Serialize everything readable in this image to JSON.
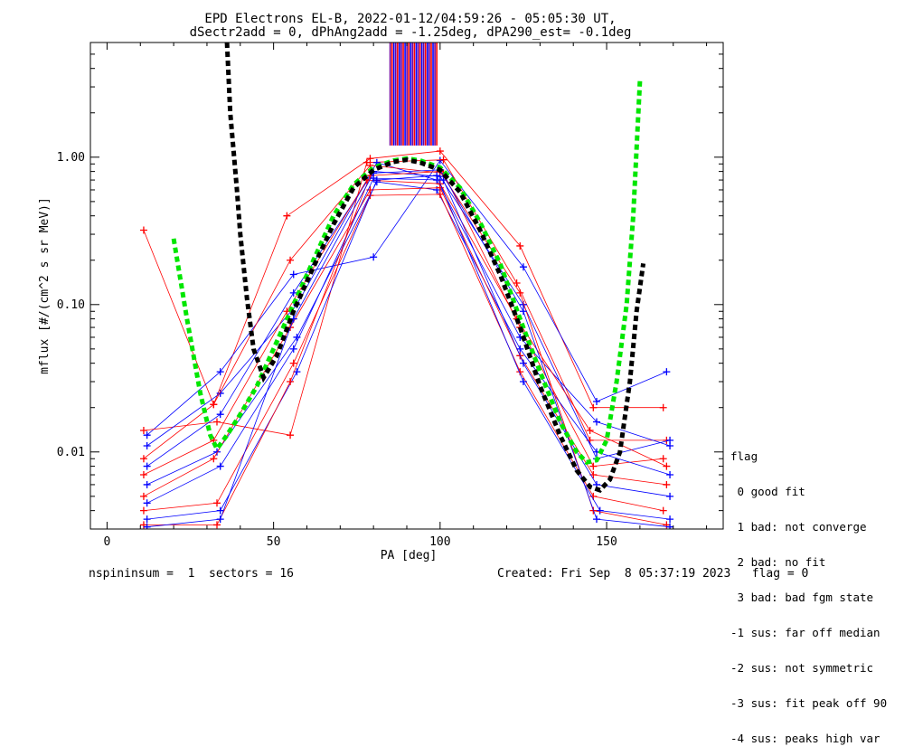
{
  "chart_data": {
    "type": "line",
    "title": "EPD Electrons EL-B, 2022-01-12/04:59:26 - 05:05:30 UT,",
    "subtitle": "dSectr2add = 0, dPhAng2add = -1.25deg, dPA290_est=  -0.1deg",
    "xlabel": "PA [deg]",
    "ylabel": "mflux [#/(cm^2 s sr MeV)]",
    "xlim": [
      -5,
      185
    ],
    "ylim": [
      0.003,
      6.0
    ],
    "yscale": "log",
    "x_ticks": [
      0,
      50,
      100,
      150
    ],
    "y_ticks": [
      0.01,
      0.1,
      1.0
    ],
    "y_tick_labels": [
      "0.01",
      "0.10",
      "1.00"
    ],
    "grid": false,
    "colors": {
      "red_series": "#ff0000",
      "blue_series": "#0000ff",
      "fit_green": "#00e600",
      "fit_black": "#000000",
      "vlines_purple": "#7000a0"
    },
    "series": [
      {
        "color": "#ff0000",
        "points": [
          [
            11,
            0.32
          ],
          [
            32,
            0.021
          ],
          [
            54,
            0.4
          ],
          [
            79,
            0.98
          ],
          [
            100,
            1.1
          ],
          [
            124,
            0.25
          ],
          [
            146,
            0.02
          ],
          [
            167,
            0.02
          ]
        ]
      },
      {
        "color": "#0000ff",
        "points": [
          [
            12,
            0.013
          ],
          [
            34,
            0.035
          ],
          [
            56,
            0.16
          ],
          [
            80,
            0.21
          ],
          [
            100,
            0.95
          ],
          [
            125,
            0.18
          ],
          [
            147,
            0.022
          ],
          [
            168,
            0.035
          ]
        ]
      },
      {
        "color": "#ff0000",
        "points": [
          [
            11,
            0.014
          ],
          [
            33,
            0.016
          ],
          [
            55,
            0.013
          ],
          [
            78,
            0.92
          ],
          [
            101,
            0.96
          ],
          [
            123,
            0.14
          ],
          [
            145,
            0.012
          ],
          [
            168,
            0.012
          ]
        ]
      },
      {
        "color": "#0000ff",
        "points": [
          [
            12,
            0.011
          ],
          [
            34,
            0.025
          ],
          [
            57,
            0.1
          ],
          [
            81,
            0.92
          ],
          [
            99,
            0.7
          ],
          [
            124,
            0.06
          ],
          [
            147,
            0.016
          ],
          [
            169,
            0.011
          ]
        ]
      },
      {
        "color": "#ff0000",
        "points": [
          [
            11,
            0.009
          ],
          [
            32,
            0.021
          ],
          [
            55,
            0.2
          ],
          [
            79,
            0.88
          ],
          [
            101,
            0.78
          ],
          [
            124,
            0.07
          ],
          [
            146,
            0.008
          ],
          [
            167,
            0.009
          ]
        ]
      },
      {
        "color": "#0000ff",
        "points": [
          [
            12,
            0.008
          ],
          [
            34,
            0.018
          ],
          [
            56,
            0.12
          ],
          [
            80,
            0.8
          ],
          [
            100,
            0.74
          ],
          [
            125,
            0.1
          ],
          [
            147,
            0.009
          ],
          [
            169,
            0.012
          ]
        ]
      },
      {
        "color": "#ff0000",
        "points": [
          [
            11,
            0.007
          ],
          [
            32,
            0.012
          ],
          [
            54,
            0.09
          ],
          [
            78,
            0.7
          ],
          [
            100,
            0.66
          ],
          [
            123,
            0.08
          ],
          [
            145,
            0.014
          ],
          [
            168,
            0.008
          ]
        ]
      },
      {
        "color": "#0000ff",
        "points": [
          [
            12,
            0.006
          ],
          [
            33,
            0.01
          ],
          [
            57,
            0.06
          ],
          [
            81,
            0.68
          ],
          [
            99,
            0.6
          ],
          [
            124,
            0.05
          ],
          [
            147,
            0.01
          ],
          [
            169,
            0.007
          ]
        ]
      },
      {
        "color": "#ff0000",
        "points": [
          [
            11,
            0.005
          ],
          [
            32,
            0.009
          ],
          [
            55,
            0.07
          ],
          [
            79,
            0.6
          ],
          [
            100,
            0.62
          ],
          [
            124,
            0.045
          ],
          [
            146,
            0.007
          ],
          [
            168,
            0.006
          ]
        ]
      },
      {
        "color": "#0000ff",
        "points": [
          [
            12,
            0.0045
          ],
          [
            34,
            0.008
          ],
          [
            56,
            0.05
          ],
          [
            80,
            0.72
          ],
          [
            101,
            0.7
          ],
          [
            125,
            0.04
          ],
          [
            147,
            0.006
          ],
          [
            169,
            0.005
          ]
        ]
      },
      {
        "color": "#ff0000",
        "points": [
          [
            11,
            0.004
          ],
          [
            33,
            0.0045
          ],
          [
            56,
            0.04
          ],
          [
            79,
            0.55
          ],
          [
            100,
            0.56
          ],
          [
            124,
            0.035
          ],
          [
            146,
            0.005
          ],
          [
            167,
            0.004
          ]
        ]
      },
      {
        "color": "#0000ff",
        "points": [
          [
            12,
            0.0035
          ],
          [
            34,
            0.004
          ],
          [
            57,
            0.035
          ],
          [
            81,
            0.7
          ],
          [
            99,
            0.75
          ],
          [
            125,
            0.03
          ],
          [
            148,
            0.004
          ],
          [
            169,
            0.0035
          ]
        ]
      },
      {
        "color": "#ff0000",
        "points": [
          [
            11,
            0.0032
          ],
          [
            33,
            0.0032
          ],
          [
            55,
            0.03
          ],
          [
            79,
            0.75
          ],
          [
            100,
            0.8
          ],
          [
            124,
            0.12
          ],
          [
            146,
            0.004
          ],
          [
            168,
            0.0032
          ]
        ]
      },
      {
        "color": "#0000ff",
        "points": [
          [
            12,
            0.0031
          ],
          [
            34,
            0.0035
          ],
          [
            56,
            0.08
          ],
          [
            80,
            0.78
          ],
          [
            100,
            0.82
          ],
          [
            125,
            0.09
          ],
          [
            147,
            0.0035
          ],
          [
            169,
            0.0031
          ]
        ]
      }
    ],
    "fit_curves": [
      {
        "color": "#00e600",
        "points": [
          [
            20,
            0.28
          ],
          [
            24,
            0.08
          ],
          [
            28,
            0.025
          ],
          [
            31,
            0.013
          ],
          [
            33,
            0.0105
          ],
          [
            36,
            0.013
          ],
          [
            40,
            0.018
          ],
          [
            45,
            0.028
          ],
          [
            50,
            0.05
          ],
          [
            56,
            0.1
          ],
          [
            62,
            0.2
          ],
          [
            68,
            0.4
          ],
          [
            74,
            0.65
          ],
          [
            80,
            0.85
          ],
          [
            86,
            0.95
          ],
          [
            90,
            0.98
          ],
          [
            94,
            0.95
          ],
          [
            100,
            0.85
          ],
          [
            106,
            0.62
          ],
          [
            112,
            0.36
          ],
          [
            118,
            0.19
          ],
          [
            124,
            0.08
          ],
          [
            130,
            0.035
          ],
          [
            136,
            0.016
          ],
          [
            141,
            0.01
          ],
          [
            144,
            0.0085
          ],
          [
            147,
            0.0088
          ],
          [
            150,
            0.012
          ],
          [
            153,
            0.03
          ],
          [
            156,
            0.1
          ],
          [
            158,
            0.4
          ],
          [
            160,
            3.3
          ]
        ]
      },
      {
        "color": "#000000",
        "points": [
          [
            36,
            6.0
          ],
          [
            37,
            2.0
          ],
          [
            38,
            1.1
          ],
          [
            39,
            0.6
          ],
          [
            40,
            0.3
          ],
          [
            42,
            0.11
          ],
          [
            44,
            0.05
          ],
          [
            47,
            0.032
          ],
          [
            51,
            0.045
          ],
          [
            56,
            0.09
          ],
          [
            62,
            0.18
          ],
          [
            68,
            0.35
          ],
          [
            74,
            0.62
          ],
          [
            80,
            0.82
          ],
          [
            86,
            0.93
          ],
          [
            90,
            0.96
          ],
          [
            94,
            0.92
          ],
          [
            100,
            0.82
          ],
          [
            106,
            0.58
          ],
          [
            112,
            0.32
          ],
          [
            118,
            0.16
          ],
          [
            124,
            0.07
          ],
          [
            130,
            0.028
          ],
          [
            136,
            0.013
          ],
          [
            141,
            0.0075
          ],
          [
            145,
            0.0058
          ],
          [
            148,
            0.0055
          ],
          [
            151,
            0.0065
          ],
          [
            154,
            0.01
          ],
          [
            157,
            0.03
          ],
          [
            159,
            0.09
          ],
          [
            161,
            0.19
          ]
        ]
      }
    ],
    "vlines": {
      "x_start": 85,
      "x_end": 99,
      "y_bottom": 1.2,
      "y_top": 6.0,
      "count": 26
    },
    "legend": {
      "placement": "right-bottom",
      "title": "flag",
      "entries": [
        " 0 good fit",
        " 1 bad: not converge",
        " 2 bad: no fit",
        " 3 bad: bad fgm state",
        "-1 sus: far off median",
        "-2 sus: not symmetric",
        "-3 sus: fit peak off 90",
        "-4 sus: peaks high var"
      ]
    }
  },
  "footer": {
    "left": "nspininsum =  1  sectors = 16",
    "right": "Created: Fri Sep  8 05:37:19 2023   flag = 0"
  }
}
